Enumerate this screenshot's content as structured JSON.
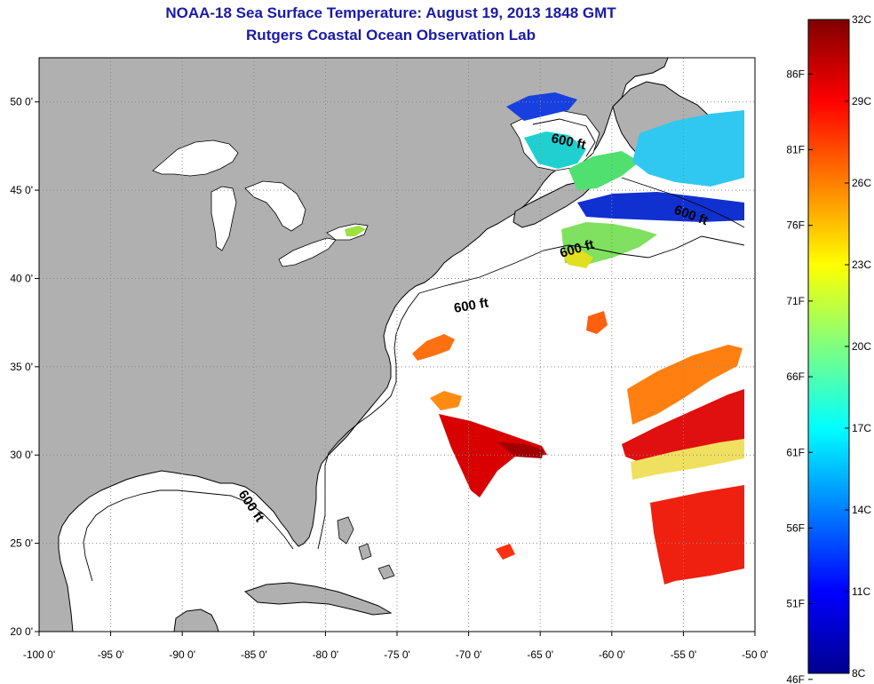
{
  "title": {
    "line1": "NOAA-18 Sea Surface Temperature:  August 19, 2013 1848 GMT",
    "line2": "Rutgers Coastal Ocean Observation Lab"
  },
  "map": {
    "lon_range": [
      -100,
      -50
    ],
    "lat_range": [
      20,
      52.5
    ],
    "grid": "dotted",
    "x_ticks": [
      "-100 0'",
      "-95 0'",
      "-90 0'",
      "-85 0'",
      "-80 0'",
      "-75 0'",
      "-70 0'",
      "-65 0'",
      "-60 0'",
      "-55 0'",
      "-50 0'"
    ],
    "y_ticks": [
      "50 0'",
      "45 0'",
      "40 0'",
      "35 0'",
      "30 0'",
      "25 0'",
      "20 0'"
    ],
    "isobath_labels": [
      "600 ft",
      "600 ft",
      "600 ft",
      "600 ft",
      "600 ft"
    ],
    "colors": {
      "land": "#b0b0b0",
      "ocean": "#ffffff",
      "grid": "#888888"
    }
  },
  "colorbar": {
    "range_c": [
      8,
      32
    ],
    "celsius_labels": [
      "32C",
      "29C",
      "26C",
      "23C",
      "20C",
      "17C",
      "14C",
      "11C",
      "8C"
    ],
    "fahrenheit_labels": [
      "86F",
      "81F",
      "76F",
      "71F",
      "66F",
      "61F",
      "56F",
      "51F",
      "46F"
    ],
    "colormap": "jet"
  }
}
